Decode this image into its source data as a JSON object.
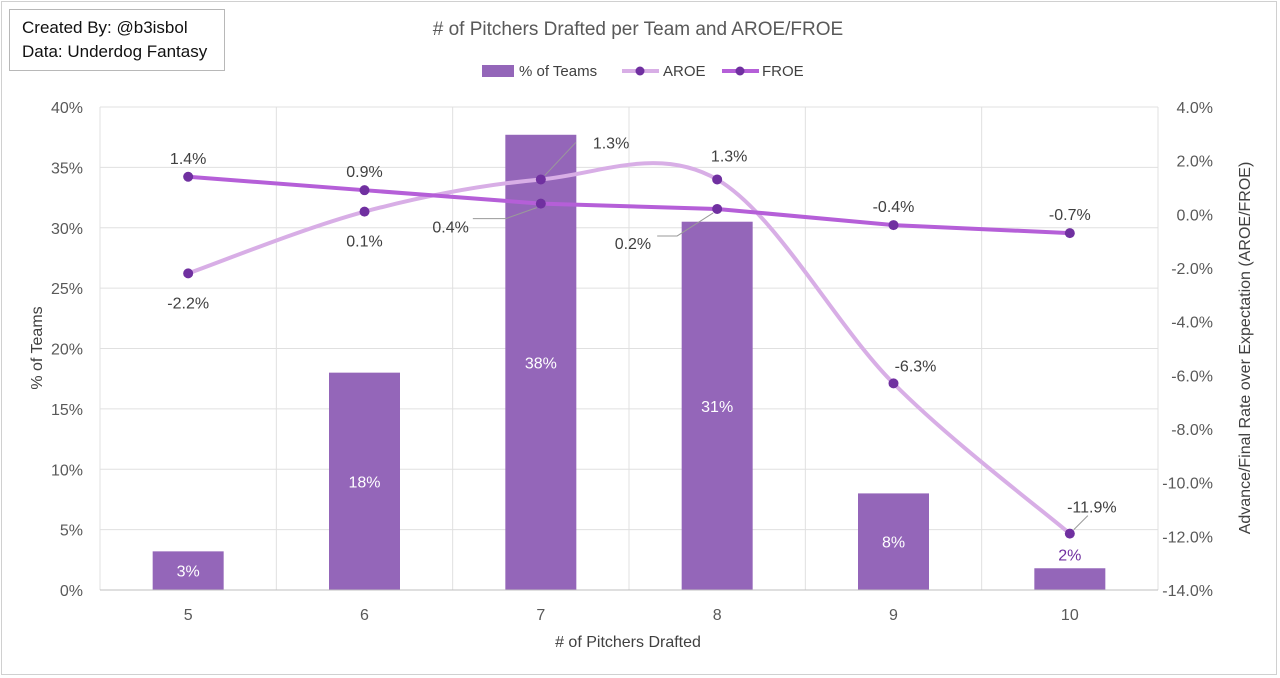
{
  "credits": {
    "created_by": "Created By: @b3isbol",
    "data_source": "Data: Underdog Fantasy"
  },
  "chart_data": {
    "type": "bar",
    "title": "# of Pitchers Drafted per Team and AROE/FROE",
    "xlabel": "# of Pitchers Drafted",
    "ylabel": "% of Teams",
    "y2label": "Advance/Final Rate over Expectation (AROE/FROE)",
    "categories": [
      "5",
      "6",
      "7",
      "8",
      "9",
      "10"
    ],
    "ylim": [
      0,
      40
    ],
    "yticks": [
      "0%",
      "5%",
      "10%",
      "15%",
      "20%",
      "25%",
      "30%",
      "35%",
      "40%"
    ],
    "y2lim": [
      -14,
      4
    ],
    "y2ticks": [
      "-14.0%",
      "-12.0%",
      "-10.0%",
      "-8.0%",
      "-6.0%",
      "-4.0%",
      "-2.0%",
      "0.0%",
      "2.0%",
      "4.0%"
    ],
    "legend_position": "top-center",
    "series": [
      {
        "name": "% of Teams",
        "kind": "bar",
        "axis": "left",
        "values": [
          3.2,
          18,
          37.7,
          30.5,
          8,
          1.8
        ],
        "labels": [
          "3%",
          "18%",
          "38%",
          "31%",
          "8%",
          "2%"
        ],
        "color": "#9466b9"
      },
      {
        "name": "AROE",
        "kind": "line",
        "smooth": true,
        "axis": "right",
        "values": [
          -2.2,
          0.1,
          1.3,
          1.3,
          -6.3,
          -11.9
        ],
        "labels": [
          "-2.2%",
          "0.1%",
          "1.3%",
          "1.3%",
          "-6.3%",
          "-11.9%"
        ],
        "color": "#d8aee6"
      },
      {
        "name": "FROE",
        "kind": "line",
        "smooth": false,
        "axis": "right",
        "values": [
          1.4,
          0.9,
          0.4,
          0.2,
          -0.4,
          -0.7
        ],
        "labels": [
          "1.4%",
          "0.9%",
          "0.4%",
          "0.2%",
          "-0.4%",
          "-0.7%"
        ],
        "color": "#b55fd8"
      }
    ],
    "marker_color": "#7030a0",
    "grid": true
  }
}
